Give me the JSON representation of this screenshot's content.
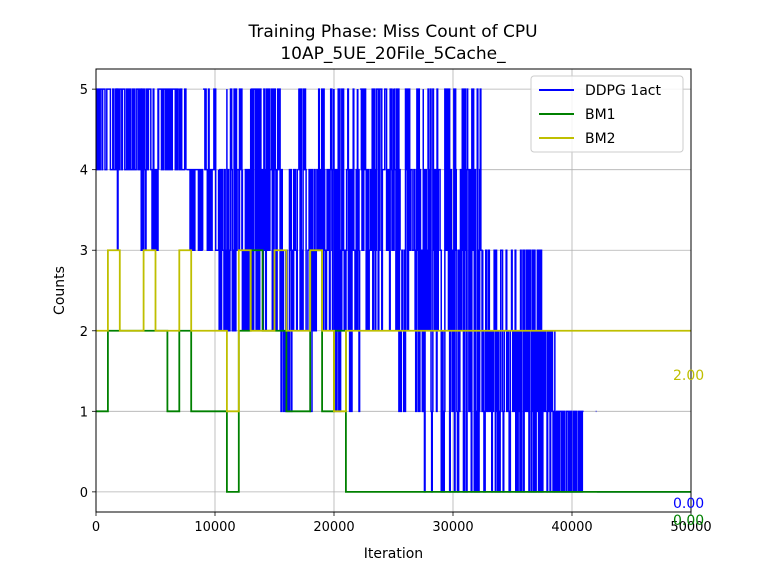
{
  "chart_data": {
    "type": "line",
    "title_line1": "Training Phase: Miss Count of CPU",
    "title_line2": "10AP_5UE_20File_5Cache_",
    "xlabel": "Iteration",
    "ylabel": "Counts",
    "xlim": [
      0,
      50000
    ],
    "ylim": [
      -0.25,
      5.25
    ],
    "xticks": [
      0,
      10000,
      20000,
      30000,
      40000,
      50000
    ],
    "xtick_labels": [
      "0",
      "10000",
      "20000",
      "30000",
      "40000",
      "50000"
    ],
    "yticks": [
      0,
      1,
      2,
      3,
      4,
      5
    ],
    "ytick_labels": [
      "0",
      "1",
      "2",
      "3",
      "4",
      "5"
    ],
    "grid": true,
    "legend_position": "top-right",
    "series": [
      {
        "name": "DDPG 1act",
        "color": "#0000ff",
        "style": "step-dense",
        "segments": [
          {
            "x0": 0,
            "x1": 3800,
            "min": 4,
            "max": 5
          },
          {
            "x0": 1700,
            "x1": 1900,
            "min": 3,
            "max": 5
          },
          {
            "x0": 3800,
            "x1": 5300,
            "min": 3,
            "max": 5
          },
          {
            "x0": 5300,
            "x1": 7000,
            "min": 4,
            "max": 5
          },
          {
            "x0": 7000,
            "x1": 7600,
            "min": 4,
            "max": 5
          },
          {
            "x0": 7600,
            "x1": 9000,
            "min": 3,
            "max": 4
          },
          {
            "x0": 9000,
            "x1": 10300,
            "min": 3,
            "max": 5
          },
          {
            "x0": 10300,
            "x1": 11000,
            "min": 2,
            "max": 4
          },
          {
            "x0": 11000,
            "x1": 12300,
            "min": 2,
            "max": 5
          },
          {
            "x0": 12300,
            "x1": 13000,
            "min": 2,
            "max": 4
          },
          {
            "x0": 13000,
            "x1": 15500,
            "min": 2,
            "max": 5
          },
          {
            "x0": 15500,
            "x1": 17000,
            "min": 1,
            "max": 4
          },
          {
            "x0": 17000,
            "x1": 20000,
            "min": 2,
            "max": 5
          },
          {
            "x0": 18000,
            "x1": 18200,
            "min": 0,
            "max": 4
          },
          {
            "x0": 20000,
            "x1": 22000,
            "min": 1,
            "max": 5
          },
          {
            "x0": 22000,
            "x1": 22200,
            "min": 0,
            "max": 5
          },
          {
            "x0": 22200,
            "x1": 25000,
            "min": 2,
            "max": 5
          },
          {
            "x0": 25000,
            "x1": 27500,
            "min": 1,
            "max": 5
          },
          {
            "x0": 25400,
            "x1": 25600,
            "min": 0,
            "max": 4
          },
          {
            "x0": 27500,
            "x1": 32500,
            "min": 0,
            "max": 5
          },
          {
            "x0": 32500,
            "x1": 37500,
            "min": 0,
            "max": 3
          },
          {
            "x0": 37500,
            "x1": 38600,
            "min": 0,
            "max": 2
          },
          {
            "x0": 38600,
            "x1": 41000,
            "min": 0,
            "max": 1
          },
          {
            "x0": 42000,
            "x1": 42100,
            "min": 0,
            "max": 1
          }
        ],
        "final_value": 0,
        "end_label": "0.00"
      },
      {
        "name": "BM1",
        "color": "#008000",
        "style": "step",
        "points": [
          [
            0,
            1
          ],
          [
            1000,
            1
          ],
          [
            1000,
            2
          ],
          [
            6000,
            2
          ],
          [
            6000,
            1
          ],
          [
            7000,
            1
          ],
          [
            7000,
            2
          ],
          [
            8000,
            2
          ],
          [
            8000,
            1
          ],
          [
            11000,
            1
          ],
          [
            11000,
            0
          ],
          [
            12000,
            0
          ],
          [
            12000,
            2
          ],
          [
            13000,
            2
          ],
          [
            13000,
            3
          ],
          [
            14000,
            3
          ],
          [
            14000,
            2
          ],
          [
            16000,
            2
          ],
          [
            16000,
            1
          ],
          [
            18000,
            1
          ],
          [
            18000,
            3
          ],
          [
            19000,
            3
          ],
          [
            19000,
            1
          ],
          [
            20000,
            1
          ],
          [
            20000,
            2
          ],
          [
            21000,
            2
          ],
          [
            21000,
            0
          ],
          [
            50000,
            0
          ]
        ],
        "final_value": 0,
        "end_label": "0.00"
      },
      {
        "name": "BM2",
        "color": "#bfbf00",
        "style": "step",
        "points": [
          [
            0,
            2
          ],
          [
            1000,
            2
          ],
          [
            1000,
            3
          ],
          [
            2000,
            3
          ],
          [
            2000,
            2
          ],
          [
            4000,
            2
          ],
          [
            4000,
            3
          ],
          [
            5000,
            3
          ],
          [
            5000,
            2
          ],
          [
            7000,
            2
          ],
          [
            7000,
            3
          ],
          [
            8000,
            3
          ],
          [
            8000,
            2
          ],
          [
            11000,
            2
          ],
          [
            11000,
            1
          ],
          [
            12000,
            1
          ],
          [
            12000,
            3
          ],
          [
            13000,
            3
          ],
          [
            13000,
            2
          ],
          [
            15000,
            2
          ],
          [
            15000,
            3
          ],
          [
            16000,
            3
          ],
          [
            16000,
            2
          ],
          [
            18000,
            2
          ],
          [
            18000,
            3
          ],
          [
            19000,
            3
          ],
          [
            19000,
            2
          ],
          [
            20000,
            2
          ],
          [
            20000,
            1
          ],
          [
            21000,
            1
          ],
          [
            21000,
            2
          ],
          [
            50000,
            2
          ]
        ],
        "final_value": 2,
        "end_label": "2.00"
      }
    ]
  }
}
